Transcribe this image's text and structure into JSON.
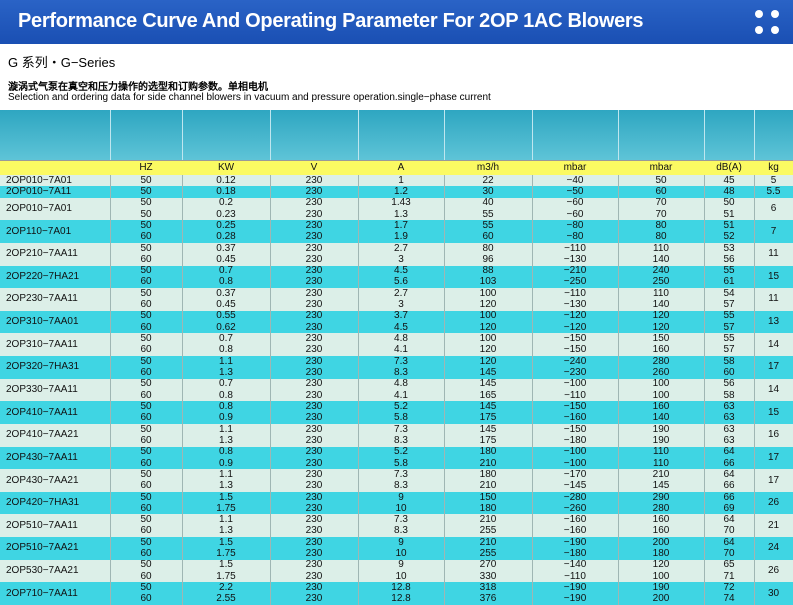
{
  "title": "Performance Curve And Operating Parameter For 2OP 1AC Blowers",
  "series_label": "G 系列・G−Series",
  "description_cn": "漩涡式气泵在真空和压力操作的选型和订购参数。单相电机",
  "description_en": "Selection and ordering data for side channel blowers in vacuum and pressure operation.single−phase current",
  "units": [
    "HZ",
    "KW",
    "V",
    "A",
    "m3/h",
    "mbar",
    "mbar",
    "dB(A)",
    "kg"
  ],
  "models": [
    {
      "model": "2OP010−7A01",
      "weight": "5",
      "rows": [
        [
          "50",
          "0.12",
          "230",
          "1",
          "22",
          "−40",
          "50",
          "45"
        ]
      ]
    },
    {
      "model": "2OP010−7A11",
      "weight": "5.5",
      "rows": [
        [
          "50",
          "0.18",
          "230",
          "1.2",
          "30",
          "−50",
          "60",
          "48"
        ]
      ]
    },
    {
      "model": "2OP010−7A01",
      "weight": "6",
      "rows": [
        [
          "50",
          "0.2",
          "230",
          "1.43",
          "40",
          "−60",
          "70",
          "50"
        ],
        [
          "50",
          "0.23",
          "230",
          "1.3",
          "55",
          "−60",
          "70",
          "51"
        ]
      ]
    },
    {
      "model": "2OP110−7A01",
      "weight": "7",
      "rows": [
        [
          "50",
          "0.25",
          "230",
          "1.7",
          "55",
          "−80",
          "80",
          "51"
        ],
        [
          "60",
          "0.28",
          "230",
          "1.9",
          "60",
          "−80",
          "80",
          "52"
        ]
      ]
    },
    {
      "model": "2OP210−7AA11",
      "weight": "11",
      "rows": [
        [
          "50",
          "0.37",
          "230",
          "2.7",
          "80",
          "−110",
          "110",
          "53"
        ],
        [
          "60",
          "0.45",
          "230",
          "3",
          "96",
          "−130",
          "140",
          "56"
        ]
      ]
    },
    {
      "model": "2OP220−7HA21",
      "weight": "15",
      "rows": [
        [
          "50",
          "0.7",
          "230",
          "4.5",
          "88",
          "−210",
          "240",
          "55"
        ],
        [
          "60",
          "0.8",
          "230",
          "5.6",
          "103",
          "−250",
          "250",
          "61"
        ]
      ]
    },
    {
      "model": "2OP230−7AA11",
      "weight": "11",
      "rows": [
        [
          "50",
          "0.37",
          "230",
          "2.7",
          "100",
          "−110",
          "110",
          "54"
        ],
        [
          "60",
          "0.45",
          "230",
          "3",
          "120",
          "−130",
          "140",
          "57"
        ]
      ]
    },
    {
      "model": "2OP310−7AA01",
      "weight": "13",
      "rows": [
        [
          "50",
          "0.55",
          "230",
          "3.7",
          "100",
          "−120",
          "120",
          "55"
        ],
        [
          "60",
          "0.62",
          "230",
          "4.5",
          "120",
          "−120",
          "120",
          "57"
        ]
      ]
    },
    {
      "model": "2OP310−7AA11",
      "weight": "14",
      "rows": [
        [
          "50",
          "0.7",
          "230",
          "4.8",
          "100",
          "−150",
          "150",
          "55"
        ],
        [
          "60",
          "0.8",
          "230",
          "4.1",
          "120",
          "−150",
          "160",
          "57"
        ]
      ]
    },
    {
      "model": "2OP320−7HA31",
      "weight": "17",
      "rows": [
        [
          "50",
          "1.1",
          "230",
          "7.3",
          "120",
          "−240",
          "280",
          "58"
        ],
        [
          "60",
          "1.3",
          "230",
          "8.3",
          "145",
          "−230",
          "260",
          "60"
        ]
      ]
    },
    {
      "model": "2OP330−7AA11",
      "weight": "14",
      "rows": [
        [
          "50",
          "0.7",
          "230",
          "4.8",
          "145",
          "−100",
          "100",
          "56"
        ],
        [
          "60",
          "0.8",
          "230",
          "4.1",
          "165",
          "−110",
          "100",
          "58"
        ]
      ]
    },
    {
      "model": "2OP410−7AA11",
      "weight": "15",
      "rows": [
        [
          "50",
          "0.8",
          "230",
          "5.2",
          "145",
          "−150",
          "160",
          "63"
        ],
        [
          "60",
          "0.9",
          "230",
          "5.8",
          "175",
          "−160",
          "140",
          "63"
        ]
      ]
    },
    {
      "model": "2OP410−7AA21",
      "weight": "16",
      "rows": [
        [
          "50",
          "1.1",
          "230",
          "7.3",
          "145",
          "−150",
          "190",
          "63"
        ],
        [
          "60",
          "1.3",
          "230",
          "8.3",
          "175",
          "−180",
          "190",
          "63"
        ]
      ]
    },
    {
      "model": "2OP430−7AA11",
      "weight": "17",
      "rows": [
        [
          "50",
          "0.8",
          "230",
          "5.2",
          "180",
          "−100",
          "110",
          "64"
        ],
        [
          "60",
          "0.9",
          "230",
          "5.8",
          "210",
          "−100",
          "110",
          "66"
        ]
      ]
    },
    {
      "model": "2OP430−7AA21",
      "weight": "17",
      "rows": [
        [
          "50",
          "1.1",
          "230",
          "7.3",
          "180",
          "−170",
          "210",
          "64"
        ],
        [
          "60",
          "1.3",
          "230",
          "8.3",
          "210",
          "−145",
          "145",
          "66"
        ]
      ]
    },
    {
      "model": "2OP420−7HA31",
      "weight": "26",
      "rows": [
        [
          "50",
          "1.5",
          "230",
          "9",
          "150",
          "−280",
          "290",
          "66"
        ],
        [
          "60",
          "1.75",
          "230",
          "10",
          "180",
          "−260",
          "280",
          "69"
        ]
      ]
    },
    {
      "model": "2OP510−7AA11",
      "weight": "21",
      "rows": [
        [
          "50",
          "1.1",
          "230",
          "7.3",
          "210",
          "−160",
          "160",
          "64"
        ],
        [
          "60",
          "1.3",
          "230",
          "8.3",
          "255",
          "−160",
          "160",
          "70"
        ]
      ]
    },
    {
      "model": "2OP510−7AA21",
      "weight": "24",
      "rows": [
        [
          "50",
          "1.5",
          "230",
          "9",
          "210",
          "−190",
          "200",
          "64"
        ],
        [
          "60",
          "1.75",
          "230",
          "10",
          "255",
          "−180",
          "180",
          "70"
        ]
      ]
    },
    {
      "model": "2OP530−7AA21",
      "weight": "26",
      "rows": [
        [
          "50",
          "1.5",
          "230",
          "9",
          "270",
          "−140",
          "120",
          "65"
        ],
        [
          "60",
          "1.75",
          "230",
          "10",
          "330",
          "−110",
          "100",
          "71"
        ]
      ]
    },
    {
      "model": "2OP710−7AA11",
      "weight": "30",
      "rows": [
        [
          "50",
          "2.2",
          "230",
          "12.8",
          "318",
          "−190",
          "190",
          "72"
        ],
        [
          "60",
          "2.55",
          "230",
          "12.8",
          "376",
          "−190",
          "200",
          "74"
        ]
      ]
    }
  ]
}
